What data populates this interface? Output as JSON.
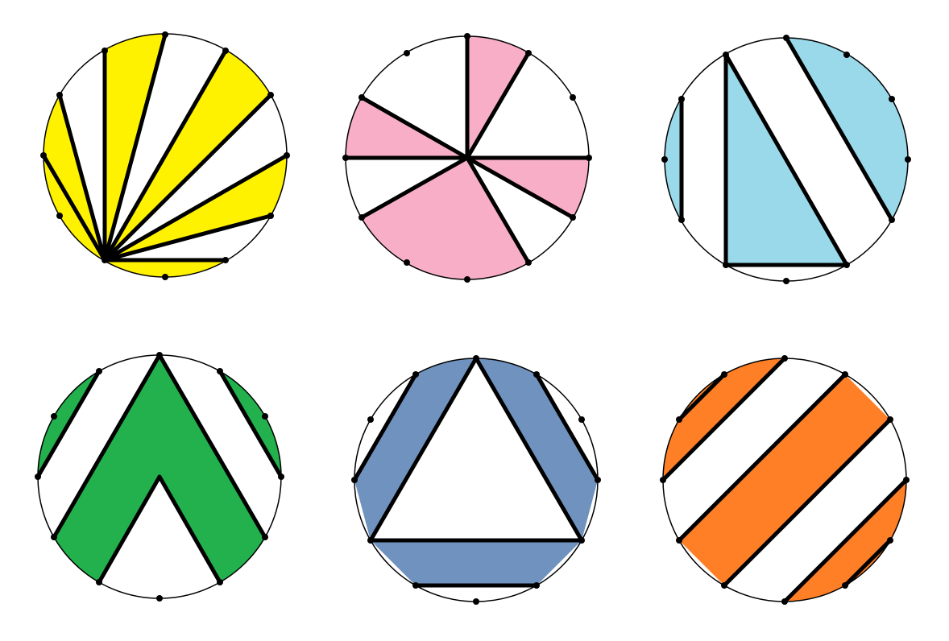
{
  "colors": {
    "background": "#ffffff",
    "outline": "#000000",
    "yellow": "#fff200",
    "pink": "#f9aec8",
    "light_blue": "#99d9ea",
    "green": "#22b14c",
    "steel_blue": "#7092be",
    "orange": "#ff7f27"
  },
  "diagrams": [
    {
      "name": "yellow-fan-circle",
      "fill_color": "yellow",
      "description_points": 12,
      "shaded_regions": 6
    },
    {
      "name": "pink-pinwheel-circle",
      "fill_color": "pink",
      "description_points": 12,
      "shaded_regions": 4
    },
    {
      "name": "blue-stripes-circle",
      "fill_color": "light_blue",
      "description_points": 12,
      "shaded_regions": 3
    },
    {
      "name": "green-chevron-circle",
      "fill_color": "green",
      "description_points": 12,
      "shaded_regions": 3
    },
    {
      "name": "steel-blue-triangle-ring-circle",
      "fill_color": "steel_blue",
      "description_points": 12,
      "shaded_regions": 3
    },
    {
      "name": "orange-stripes-circle",
      "fill_color": "orange",
      "description_points": 12,
      "shaded_regions": 4
    }
  ]
}
